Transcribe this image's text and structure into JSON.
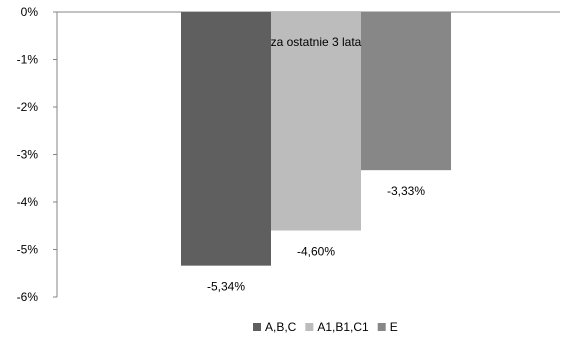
{
  "chart_data": {
    "type": "bar",
    "title": "",
    "xlabel": "",
    "ylabel": "",
    "annotation": "za ostatnie 3 lata",
    "ylim": [
      -6,
      0
    ],
    "yticks": [
      {
        "value": 0,
        "label": "0%"
      },
      {
        "value": -1,
        "label": "-1%"
      },
      {
        "value": -2,
        "label": "-2%"
      },
      {
        "value": -3,
        "label": "-3%"
      },
      {
        "value": -4,
        "label": "-4%"
      },
      {
        "value": -5,
        "label": "-5%"
      },
      {
        "value": -6,
        "label": "-6%"
      }
    ],
    "grid": false,
    "legend_position": "bottom",
    "series": [
      {
        "name": "A,B,C",
        "value": -5.34,
        "label": "-5,34%",
        "color": "#5f5f5f"
      },
      {
        "name": "A1,B1,C1",
        "value": -4.6,
        "label": "-4,60%",
        "color": "#bcbcbc"
      },
      {
        "name": "E",
        "value": -3.33,
        "label": "-3,33%",
        "color": "#878787"
      }
    ]
  }
}
